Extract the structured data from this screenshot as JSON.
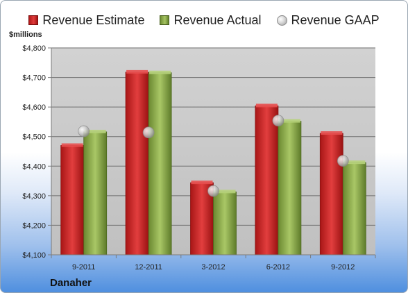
{
  "legend": {
    "estimate_label": "Revenue Estimate",
    "actual_label": "Revenue Actual",
    "gaap_label": "Revenue GAAP"
  },
  "colors": {
    "estimate": "#d42a2a",
    "actual": "#8fad4c",
    "gaap": "#c8c8c8",
    "plot_bg": "#c9c9c9"
  },
  "y_unit_label": "$millions",
  "company": "Danaher",
  "chart_data": {
    "type": "bar",
    "categories": [
      "9-2011",
      "12-2011",
      "3-2012",
      "6-2012",
      "9-2012"
    ],
    "series": [
      {
        "name": "Revenue Estimate",
        "values": [
          4470,
          4718,
          4344,
          4604,
          4511
        ]
      },
      {
        "name": "Revenue Actual",
        "values": [
          4516,
          4716,
          4313,
          4552,
          4412
        ]
      },
      {
        "name": "Revenue GAAP",
        "marker": "sphere",
        "values": [
          4518,
          4514,
          4316,
          4554,
          4418
        ]
      }
    ],
    "ylim": [
      4100,
      4800
    ],
    "yticks": [
      4100,
      4200,
      4300,
      4400,
      4500,
      4600,
      4700,
      4800
    ],
    "ytick_labels": [
      "$4,100",
      "$4,200",
      "$4,300",
      "$4,400",
      "$4,500",
      "$4,600",
      "$4,700",
      "$4,800"
    ],
    "grid": true,
    "legend_position": "top"
  }
}
